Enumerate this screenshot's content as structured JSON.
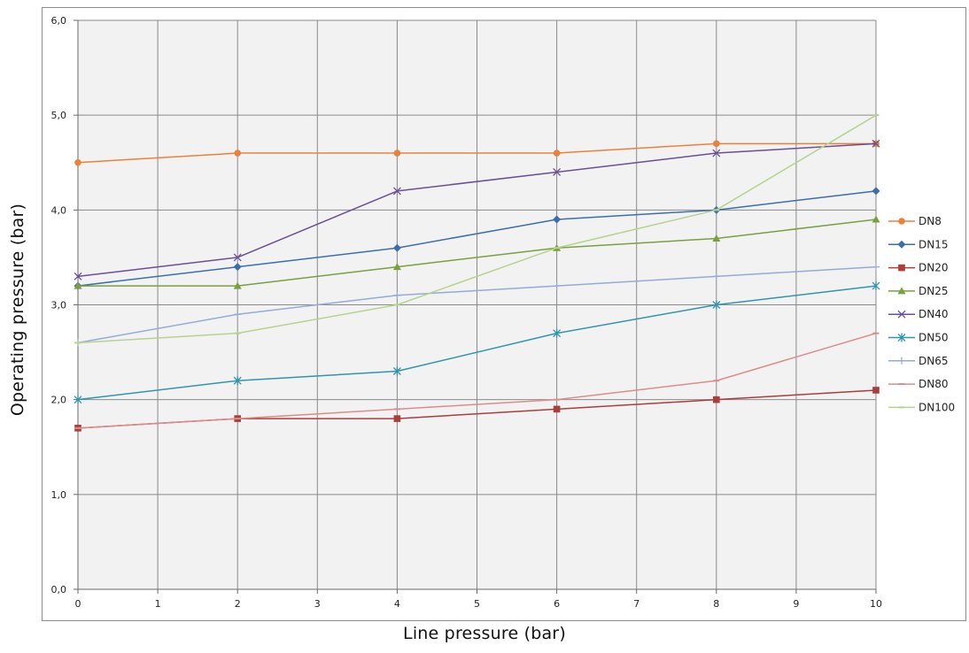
{
  "chart_data": {
    "type": "line",
    "title": "",
    "xlabel": "Line pressure (bar)",
    "ylabel": "Operating pressure (bar)",
    "xlim": [
      0,
      10
    ],
    "ylim": [
      0,
      6
    ],
    "x_ticks": [
      "0",
      "1",
      "2",
      "3",
      "4",
      "5",
      "6",
      "7",
      "8",
      "9",
      "10"
    ],
    "y_ticks": [
      "0,0",
      "1,0",
      "2,0",
      "3,0",
      "4,0",
      "5,0",
      "6,0"
    ],
    "grid": true,
    "plot_background": "#f2f2f2",
    "legend": "right",
    "x": [
      0,
      2,
      4,
      6,
      8,
      10
    ],
    "series": [
      {
        "name": "DN8",
        "color": "#e8823a",
        "marker": "circle",
        "values": [
          4.5,
          4.6,
          4.6,
          4.6,
          4.7,
          4.7
        ]
      },
      {
        "name": "DN15",
        "color": "#3c6eab",
        "marker": "diamond",
        "values": [
          3.2,
          3.4,
          3.6,
          3.9,
          4.0,
          4.2
        ]
      },
      {
        "name": "DN20",
        "color": "#ab3d3b",
        "marker": "square",
        "values": [
          1.7,
          1.8,
          1.8,
          1.9,
          2.0,
          2.1
        ]
      },
      {
        "name": "DN25",
        "color": "#79a03e",
        "marker": "triangle",
        "values": [
          3.2,
          3.2,
          3.4,
          3.6,
          3.7,
          3.9
        ]
      },
      {
        "name": "DN40",
        "color": "#6a4e98",
        "marker": "x",
        "values": [
          3.3,
          3.5,
          4.2,
          4.4,
          4.6,
          4.7
        ]
      },
      {
        "name": "DN50",
        "color": "#2f95ad",
        "marker": "star",
        "values": [
          2.0,
          2.2,
          2.3,
          2.7,
          3.0,
          3.2
        ]
      },
      {
        "name": "DN65",
        "color": "#93acd6",
        "marker": "plus",
        "values": [
          2.6,
          2.9,
          3.1,
          3.2,
          3.3,
          3.4
        ]
      },
      {
        "name": "DN80",
        "color": "#dc8c8a",
        "marker": "dash",
        "values": [
          1.7,
          1.8,
          1.9,
          2.0,
          2.2,
          2.7
        ]
      },
      {
        "name": "DN100",
        "color": "#b6d38e",
        "marker": "dash",
        "values": [
          2.6,
          2.7,
          3.0,
          3.6,
          4.0,
          5.0
        ]
      }
    ]
  }
}
